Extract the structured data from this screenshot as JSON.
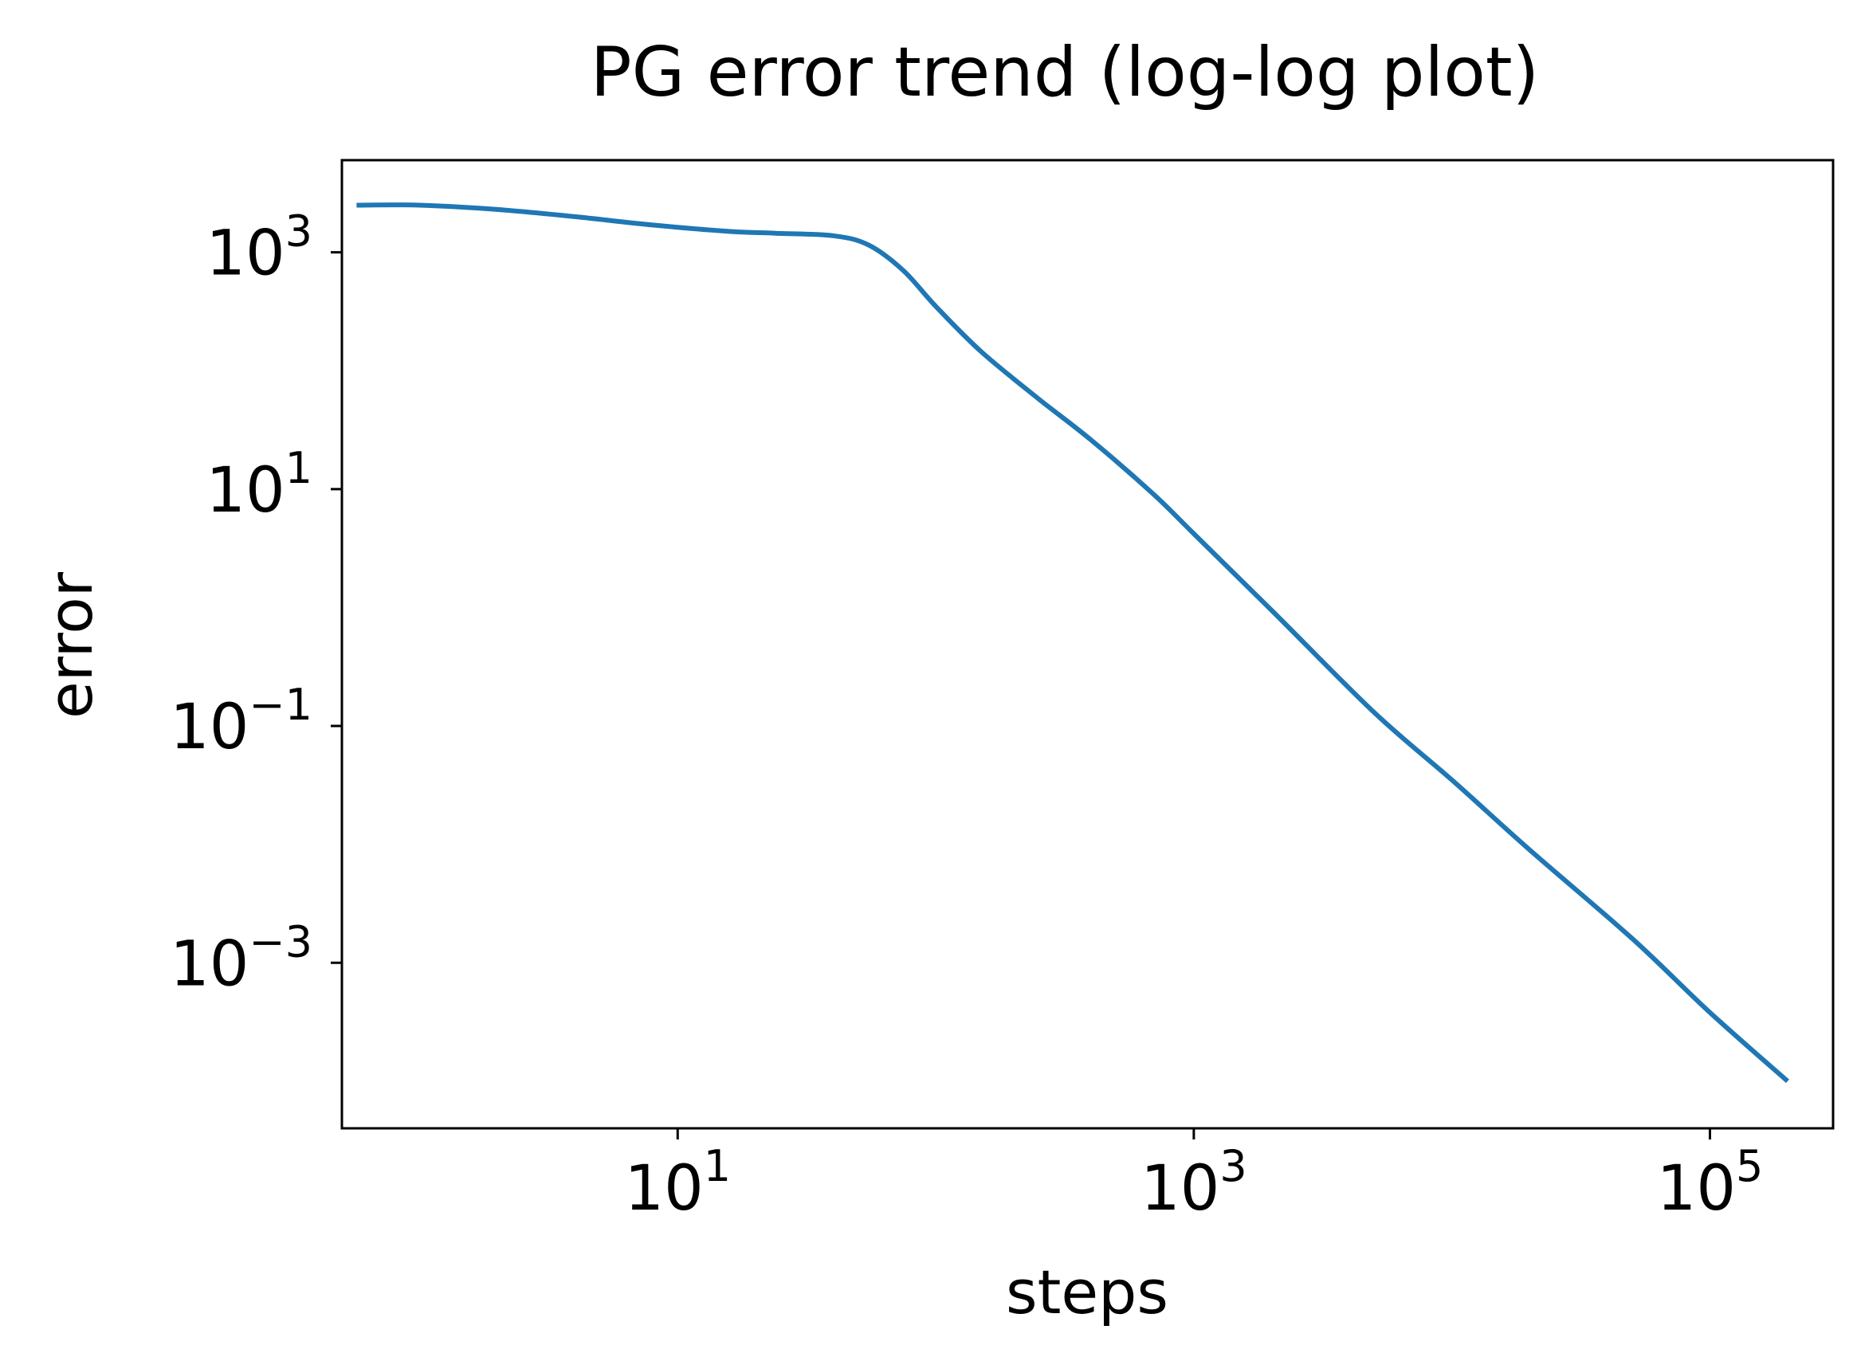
{
  "chart_data": {
    "type": "line",
    "title": "PG error trend (log-log plot)",
    "xlabel": "steps",
    "ylabel": "error",
    "xscale": "log",
    "yscale": "log",
    "xlim": [
      0.5,
      300000
    ],
    "ylim": [
      4e-05,
      6000
    ],
    "grid": false,
    "x_ticks": [
      {
        "value": 10,
        "base": "10",
        "exp": "1"
      },
      {
        "value": 1000,
        "base": "10",
        "exp": "3"
      },
      {
        "value": 100000,
        "base": "10",
        "exp": "5"
      }
    ],
    "y_ticks": [
      {
        "value": 1000,
        "base": "10",
        "exp": "3"
      },
      {
        "value": 10,
        "base": "10",
        "exp": "1"
      },
      {
        "value": 0.1,
        "base": "10",
        "exp": "−1"
      },
      {
        "value": 0.001,
        "base": "10",
        "exp": "−3"
      }
    ],
    "series": [
      {
        "color": "#1f77b4",
        "x": [
          0.57,
          1,
          2,
          4,
          8,
          16,
          24,
          40,
          55,
          75,
          100,
          150,
          250,
          400,
          700,
          1000,
          2000,
          5000,
          10000,
          20000,
          50000,
          100000,
          200000
        ],
        "y": [
          2500,
          2500,
          2300,
          2000,
          1700,
          1500,
          1450,
          1380,
          1150,
          700,
          350,
          145,
          58,
          26,
          9,
          4.2,
          0.95,
          0.13,
          0.035,
          0.009,
          0.0016,
          0.00038,
          0.0001
        ]
      }
    ]
  }
}
